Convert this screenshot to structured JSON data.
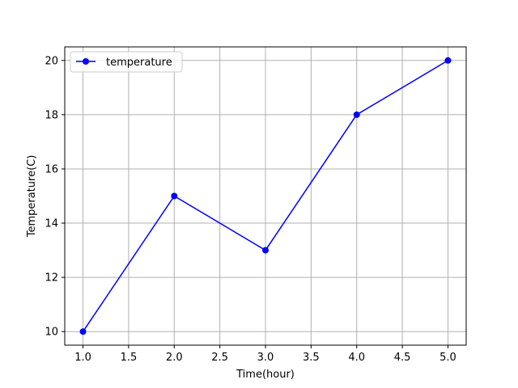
{
  "chart_data": {
    "type": "line",
    "title": "",
    "xlabel": "Time(hour)",
    "ylabel": "Temperature(C)",
    "x": [
      1.0,
      2.0,
      3.0,
      4.0,
      5.0
    ],
    "series": [
      {
        "name": "temperature",
        "values": [
          10,
          15,
          13,
          18,
          20
        ],
        "color": "#0000ff",
        "marker": "circle"
      }
    ],
    "xlim": [
      0.8,
      5.2
    ],
    "ylim": [
      9.5,
      20.5
    ],
    "xticks": [
      1.0,
      1.5,
      2.0,
      2.5,
      3.0,
      3.5,
      4.0,
      4.5,
      5.0
    ],
    "xtick_labels": [
      "1.0",
      "1.5",
      "2.0",
      "2.5",
      "3.0",
      "3.5",
      "4.0",
      "4.5",
      "5.0"
    ],
    "yticks": [
      10,
      12,
      14,
      16,
      18,
      20
    ],
    "ytick_labels": [
      "10",
      "12",
      "14",
      "16",
      "18",
      "20"
    ],
    "grid": true,
    "legend_position": "top-left"
  }
}
